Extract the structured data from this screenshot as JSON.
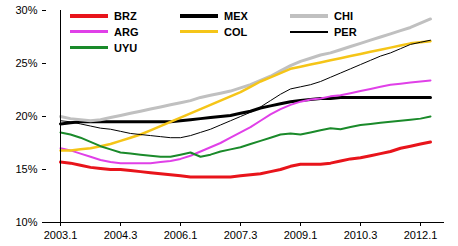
{
  "chart_data": {
    "type": "line",
    "categories": [
      "2003.1",
      null,
      null,
      null,
      null,
      null,
      "2004.3",
      null,
      null,
      null,
      null,
      null,
      "2006.1",
      null,
      null,
      null,
      null,
      null,
      "2007.3",
      null,
      null,
      null,
      null,
      null,
      "2009.1",
      null,
      null,
      null,
      null,
      null,
      "2010.3",
      null,
      null,
      null,
      null,
      null,
      "2012.1",
      null
    ],
    "series": [
      {
        "name": "BRZ",
        "color": "#e8141b",
        "values": [
          15.7,
          15.6,
          15.4,
          15.2,
          15.1,
          15.0,
          15.0,
          14.9,
          14.8,
          14.7,
          14.6,
          14.5,
          14.4,
          14.3,
          14.3,
          14.3,
          14.3,
          14.3,
          14.4,
          14.5,
          14.6,
          14.8,
          15.0,
          15.3,
          15.5,
          15.5,
          15.5,
          15.6,
          15.8,
          16.0,
          16.1,
          16.3,
          16.5,
          16.7,
          17.0,
          17.2,
          17.4,
          17.6
        ]
      },
      {
        "name": "MEX",
        "color": "#000000",
        "values": [
          19.3,
          19.4,
          19.5,
          19.5,
          19.5,
          19.5,
          19.5,
          19.5,
          19.5,
          19.5,
          19.5,
          19.5,
          19.6,
          19.7,
          19.8,
          19.9,
          20.0,
          20.1,
          20.3,
          20.5,
          20.8,
          21.0,
          21.2,
          21.4,
          21.5,
          21.6,
          21.7,
          21.7,
          21.8,
          21.8,
          21.8,
          21.8,
          21.8,
          21.8,
          21.8,
          21.8,
          21.8,
          21.8
        ]
      },
      {
        "name": "CHI",
        "color": "#c0c0c0",
        "values": [
          20.0,
          19.8,
          19.7,
          19.6,
          19.7,
          19.9,
          20.1,
          20.3,
          20.5,
          20.7,
          20.9,
          21.1,
          21.3,
          21.5,
          21.8,
          22.0,
          22.2,
          22.4,
          22.7,
          23.0,
          23.4,
          23.8,
          24.3,
          24.8,
          25.2,
          25.5,
          25.8,
          26.0,
          26.3,
          26.6,
          26.9,
          27.2,
          27.5,
          27.8,
          28.1,
          28.4,
          28.8,
          29.2
        ]
      },
      {
        "name": "ARG",
        "color": "#e040e8",
        "values": [
          17.0,
          16.8,
          16.5,
          16.2,
          15.9,
          15.7,
          15.6,
          15.6,
          15.6,
          15.6,
          15.7,
          15.8,
          16.0,
          16.3,
          16.7,
          17.1,
          17.5,
          18.0,
          18.5,
          19.0,
          19.6,
          20.2,
          20.7,
          21.1,
          21.4,
          21.6,
          21.7,
          21.9,
          22.0,
          22.2,
          22.4,
          22.6,
          22.8,
          23.0,
          23.1,
          23.2,
          23.3,
          23.4
        ]
      },
      {
        "name": "COL",
        "color": "#f5c518",
        "values": [
          16.8,
          16.8,
          16.9,
          17.0,
          17.2,
          17.4,
          17.7,
          18.0,
          18.3,
          18.7,
          19.1,
          19.5,
          19.9,
          20.3,
          20.7,
          21.1,
          21.5,
          21.9,
          22.3,
          22.8,
          23.3,
          23.7,
          24.1,
          24.5,
          24.7,
          24.9,
          25.1,
          25.3,
          25.5,
          25.7,
          25.9,
          26.1,
          26.3,
          26.5,
          26.7,
          26.9,
          27.0,
          27.1
        ]
      },
      {
        "name": "PER",
        "color": "#000000",
        "values": [
          19.6,
          19.5,
          19.3,
          19.1,
          18.9,
          18.8,
          18.6,
          18.4,
          18.3,
          18.2,
          18.1,
          18.0,
          18.0,
          18.2,
          18.5,
          18.8,
          19.2,
          19.6,
          20.0,
          20.4,
          20.9,
          21.5,
          22.1,
          22.6,
          22.8,
          23.0,
          23.3,
          23.7,
          24.1,
          24.5,
          24.9,
          25.3,
          25.7,
          26.0,
          26.4,
          26.8,
          27.0,
          27.2
        ]
      },
      {
        "name": "UYU",
        "color": "#1a8a2a",
        "values": [
          18.5,
          18.3,
          18.0,
          17.6,
          17.2,
          16.9,
          16.6,
          16.5,
          16.4,
          16.3,
          16.2,
          16.2,
          16.4,
          16.6,
          16.2,
          16.4,
          16.7,
          16.9,
          17.1,
          17.4,
          17.7,
          18.0,
          18.3,
          18.4,
          18.3,
          18.5,
          18.7,
          18.9,
          18.8,
          19.0,
          19.2,
          19.3,
          19.4,
          19.5,
          19.6,
          19.7,
          19.8,
          20.0
        ]
      }
    ],
    "ylim": [
      10,
      30
    ],
    "yticks": [
      {
        "value": 10,
        "label": "10%"
      },
      {
        "value": 15,
        "label": "15%"
      },
      {
        "value": 20,
        "label": "20%"
      },
      {
        "value": 25,
        "label": "25%"
      },
      {
        "value": 30,
        "label": "30%"
      }
    ],
    "legend": "top-left",
    "grid": false
  }
}
